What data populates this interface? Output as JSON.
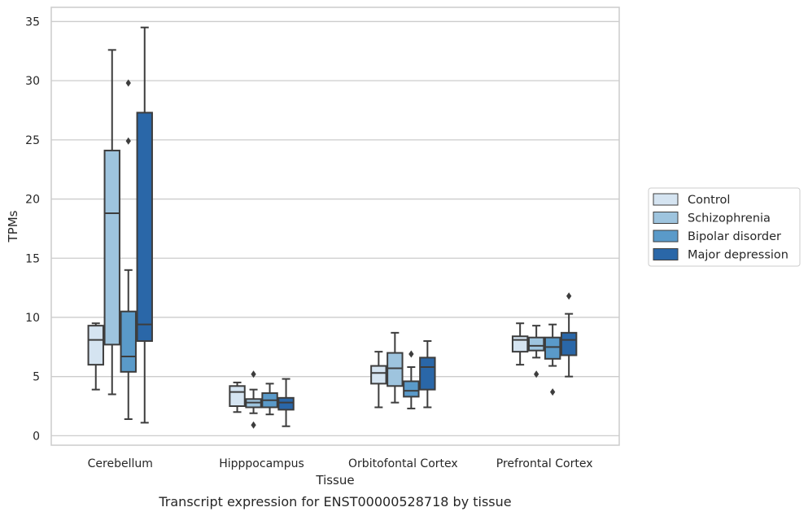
{
  "chart_data": {
    "type": "box",
    "title": "",
    "caption": "Transcript expression for ENST00000528718 by tissue",
    "xlabel": "Tissue",
    "ylabel": "TPMs",
    "ylim": [
      -0.8,
      36.2
    ],
    "yticks": [
      0,
      5,
      10,
      15,
      20,
      25,
      30,
      35
    ],
    "grid": "horizontal",
    "legend_position": "right",
    "categories": [
      "Cerebellum",
      "Hipppocampus",
      "Orbitofontal Cortex",
      "Prefrontal Cortex"
    ],
    "series": [
      {
        "name": "Control",
        "color": "#d5e4f1",
        "boxes": [
          {
            "whisker_low": 3.9,
            "q1": 6.0,
            "median": 8.1,
            "q3": 9.3,
            "whisker_high": 9.5,
            "outliers": []
          },
          {
            "whisker_low": 2.0,
            "q1": 2.5,
            "median": 3.7,
            "q3": 4.2,
            "whisker_high": 4.5,
            "outliers": []
          },
          {
            "whisker_low": 2.4,
            "q1": 4.4,
            "median": 5.3,
            "q3": 5.9,
            "whisker_high": 7.1,
            "outliers": []
          },
          {
            "whisker_low": 6.0,
            "q1": 7.1,
            "median": 8.1,
            "q3": 8.4,
            "whisker_high": 9.5,
            "outliers": []
          }
        ]
      },
      {
        "name": "Schizophrenia",
        "color": "#9ec4de",
        "boxes": [
          {
            "whisker_low": 3.5,
            "q1": 7.7,
            "median": 18.8,
            "q3": 24.1,
            "whisker_high": 32.6,
            "outliers": []
          },
          {
            "whisker_low": 1.9,
            "q1": 2.4,
            "median": 2.8,
            "q3": 3.1,
            "whisker_high": 3.9,
            "outliers": [
              5.2,
              0.9
            ]
          },
          {
            "whisker_low": 2.8,
            "q1": 4.2,
            "median": 5.7,
            "q3": 7.0,
            "whisker_high": 8.7,
            "outliers": []
          },
          {
            "whisker_low": 6.6,
            "q1": 7.2,
            "median": 7.6,
            "q3": 8.3,
            "whisker_high": 9.3,
            "outliers": [
              5.2
            ]
          }
        ]
      },
      {
        "name": "Bipolar disorder",
        "color": "#5a9ac9",
        "boxes": [
          {
            "whisker_low": 1.4,
            "q1": 5.4,
            "median": 6.7,
            "q3": 10.5,
            "whisker_high": 14.0,
            "outliers": [
              29.8,
              24.9
            ]
          },
          {
            "whisker_low": 1.8,
            "q1": 2.4,
            "median": 3.0,
            "q3": 3.6,
            "whisker_high": 4.4,
            "outliers": []
          },
          {
            "whisker_low": 2.3,
            "q1": 3.3,
            "median": 3.8,
            "q3": 4.6,
            "whisker_high": 5.8,
            "outliers": [
              6.9
            ]
          },
          {
            "whisker_low": 5.9,
            "q1": 6.5,
            "median": 7.5,
            "q3": 8.3,
            "whisker_high": 9.4,
            "outliers": [
              3.7
            ]
          }
        ]
      },
      {
        "name": "Major depression",
        "color": "#2a67a8",
        "boxes": [
          {
            "whisker_low": 1.1,
            "q1": 8.0,
            "median": 9.4,
            "q3": 27.3,
            "whisker_high": 34.5,
            "outliers": []
          },
          {
            "whisker_low": 0.8,
            "q1": 2.2,
            "median": 2.8,
            "q3": 3.2,
            "whisker_high": 4.8,
            "outliers": []
          },
          {
            "whisker_low": 2.4,
            "q1": 3.9,
            "median": 5.8,
            "q3": 6.6,
            "whisker_high": 8.0,
            "outliers": []
          },
          {
            "whisker_low": 5.0,
            "q1": 6.8,
            "median": 8.1,
            "q3": 8.7,
            "whisker_high": 10.3,
            "outliers": [
              11.8
            ]
          }
        ]
      }
    ]
  }
}
